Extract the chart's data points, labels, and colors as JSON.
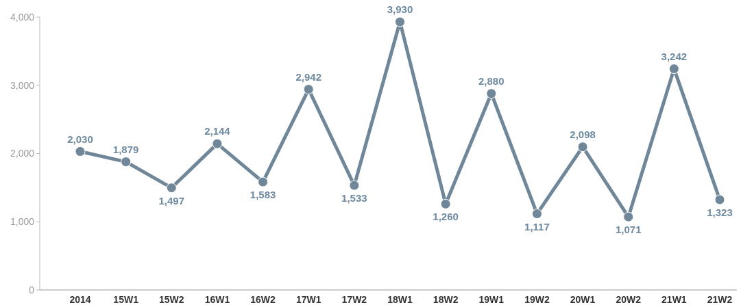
{
  "chart_data": {
    "type": "line",
    "categories": [
      "2014",
      "15W1",
      "15W2",
      "16W1",
      "16W2",
      "17W1",
      "17W2",
      "18W1",
      "18W2",
      "19W1",
      "19W2",
      "20W1",
      "20W2",
      "21W1",
      "21W2"
    ],
    "series": [
      {
        "color": "#6f8799",
        "values": [
          2030,
          1879,
          1497,
          2144,
          1583,
          2942,
          1533,
          3930,
          1260,
          2880,
          1117,
          2098,
          1071,
          3242,
          1323
        ],
        "value_labels": [
          "2,030",
          "1,879",
          "1,497",
          "2,144",
          "1,583",
          "2,942",
          "1,533",
          "3,930",
          "1,260",
          "2,880",
          "1,117",
          "2,098",
          "1,071",
          "3,242",
          "1,323"
        ]
      }
    ],
    "ylim": [
      0,
      4000
    ],
    "yticks": [
      {
        "value": 0,
        "label": "0"
      },
      {
        "value": 1000,
        "label": "1,000"
      },
      {
        "value": 2000,
        "label": "2,000"
      },
      {
        "value": 3000,
        "label": "3,000"
      },
      {
        "value": 4000,
        "label": "4,000"
      }
    ],
    "grid": false,
    "marker": "circle",
    "line_style": "solid"
  }
}
